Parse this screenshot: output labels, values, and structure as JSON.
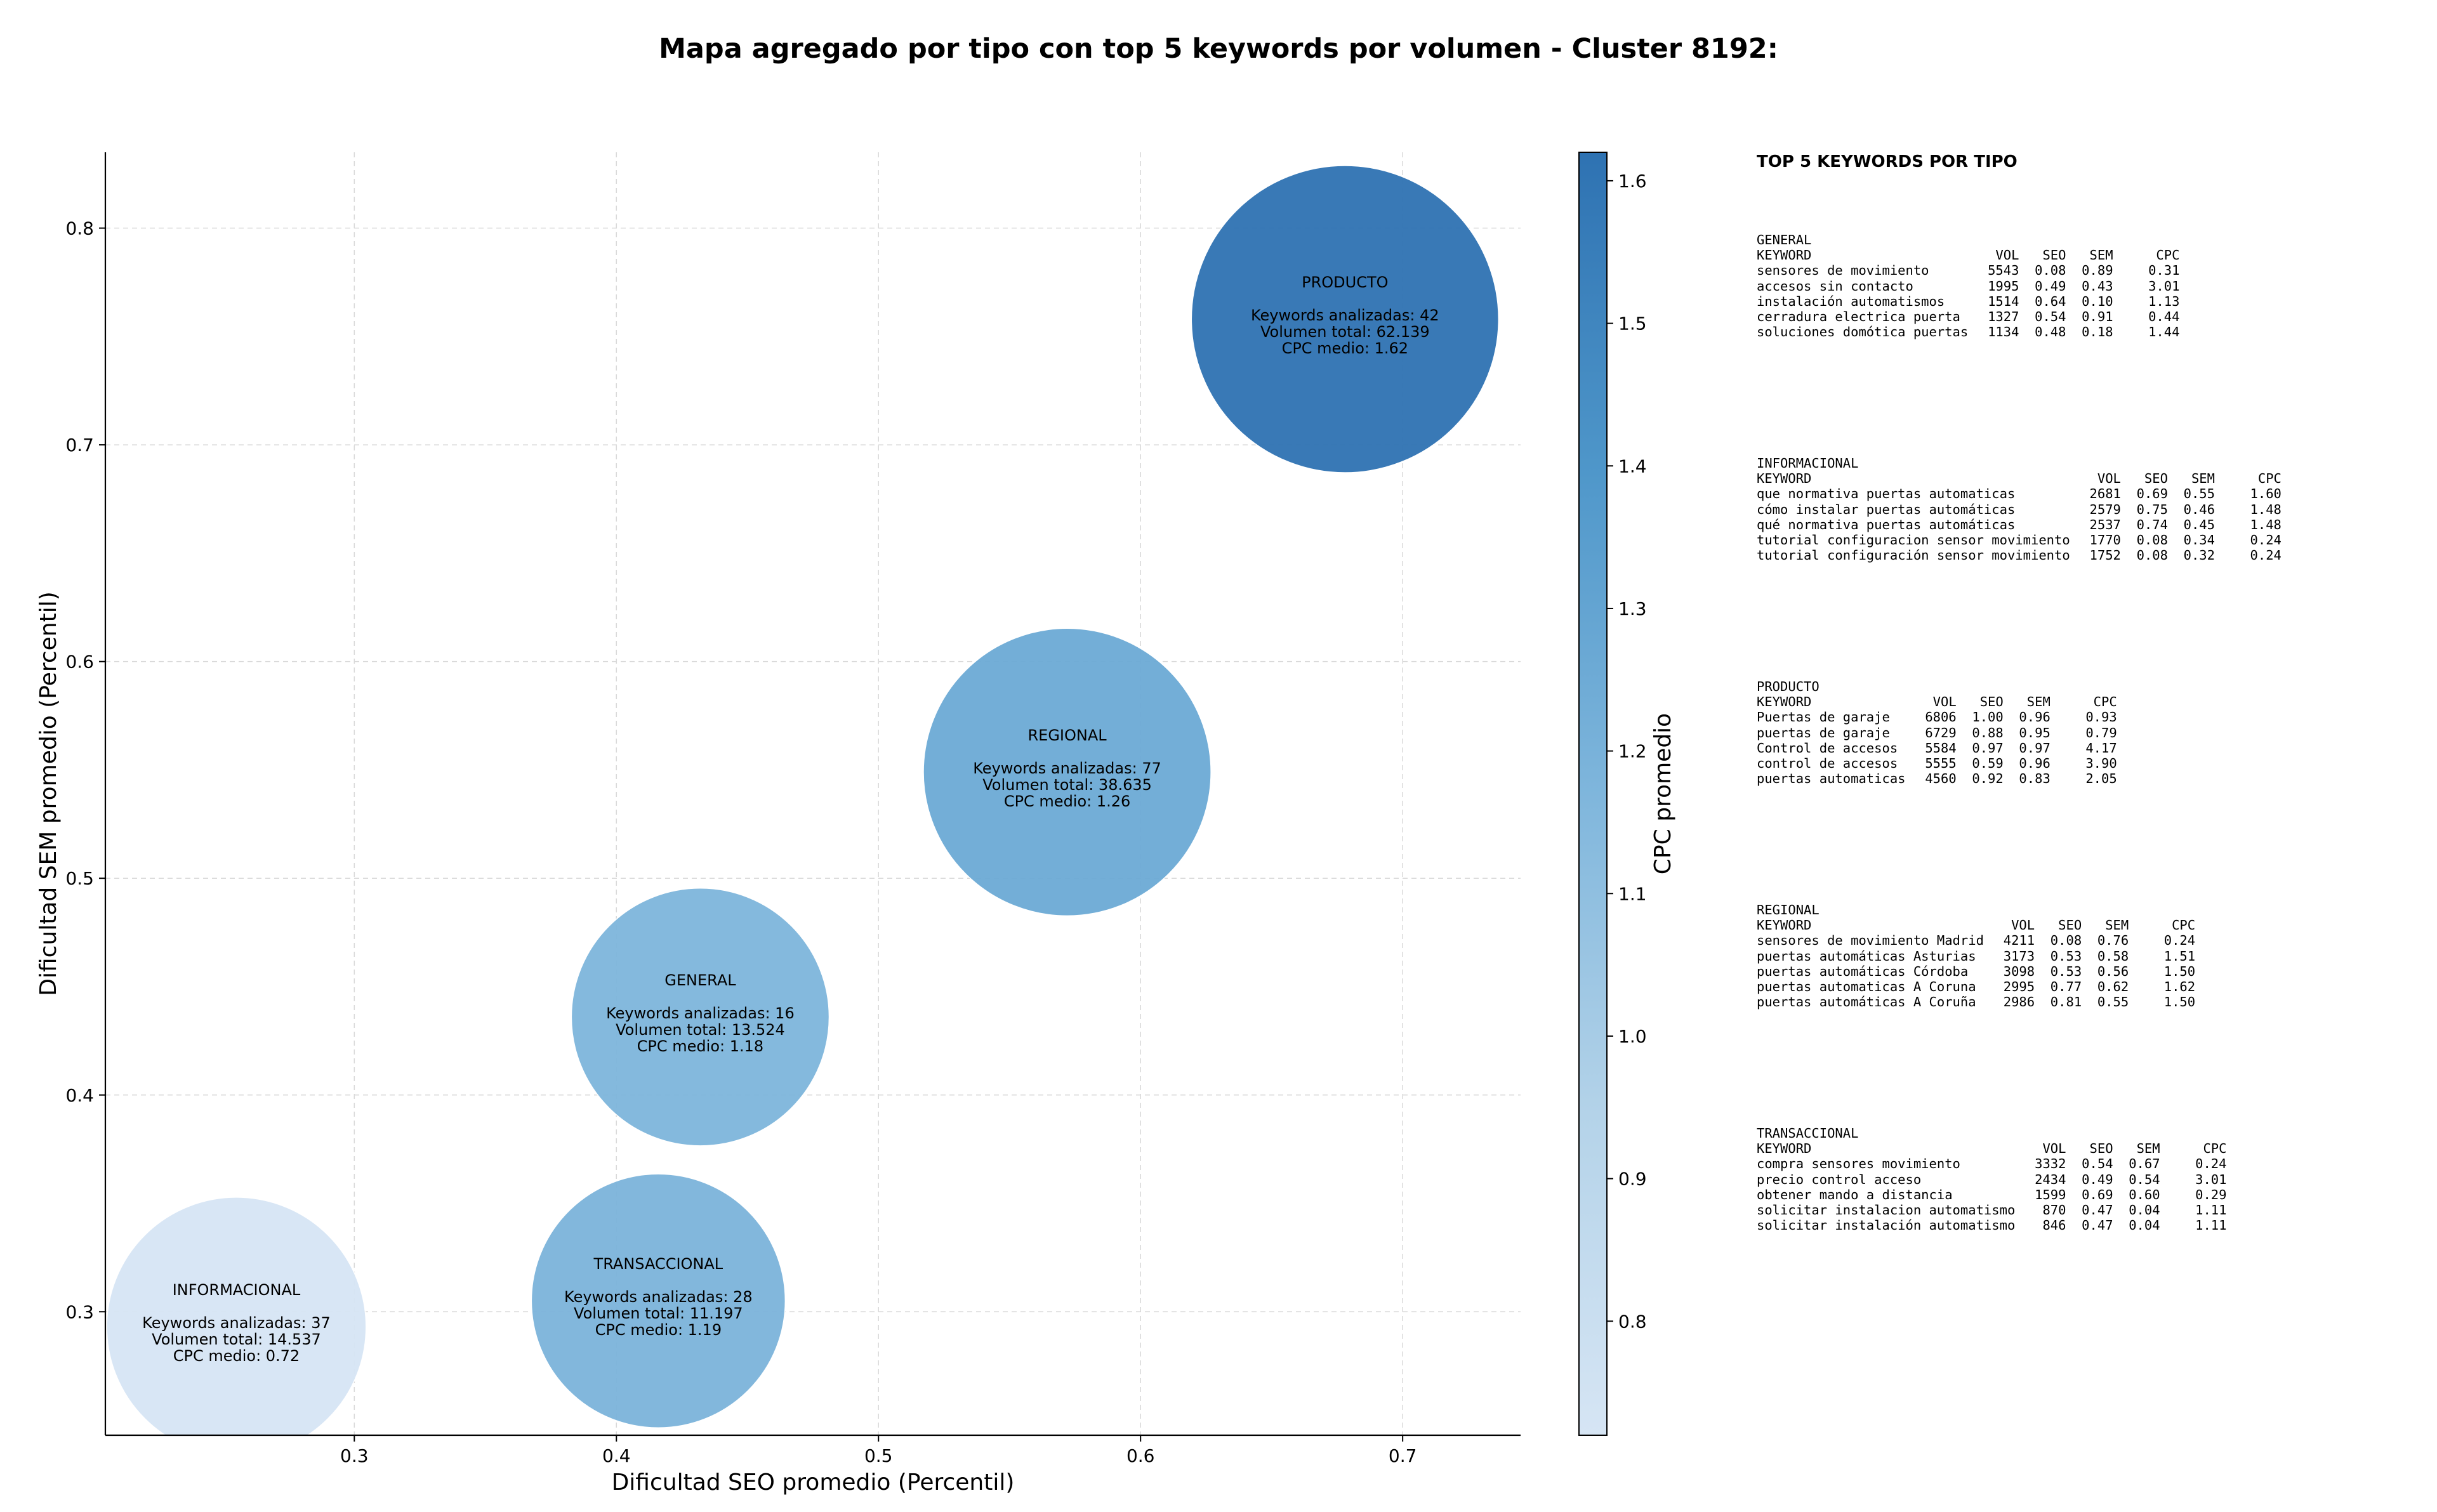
{
  "title": "Mapa agregado por tipo con top 5 keywords por volumen - Cluster 8192:",
  "chart_data": {
    "type": "scatter",
    "title": "Mapa agregado por tipo con top 5 keywords por volumen - Cluster 8192:",
    "xlabel": "Dificultad SEO promedio (Percentil)",
    "ylabel": "Dificultad SEM promedio (Percentil)",
    "xlim": [
      0.205,
      0.745
    ],
    "ylim": [
      0.243,
      0.835
    ],
    "xticks": [
      "0.3",
      "0.4",
      "0.5",
      "0.6",
      "0.7"
    ],
    "yticks": [
      "0.3",
      "0.4",
      "0.5",
      "0.6",
      "0.7",
      "0.8"
    ],
    "grid": true,
    "colorbar": {
      "label": "CPC promedio",
      "range": [
        0.72,
        1.62
      ],
      "ticks": [
        "0.8",
        "0.9",
        "1.0",
        "1.1",
        "1.2",
        "1.3",
        "1.4",
        "1.5",
        "1.6"
      ],
      "colormap": "Blues"
    },
    "bubbles": [
      {
        "name": "PRODUCTO",
        "x": 0.678,
        "y": 0.758,
        "keywords": 42,
        "volume": 62139,
        "lines": [
          "PRODUCTO",
          "",
          "Keywords analizadas: 42",
          "Volumen total: 62.139",
          "CPC medio: 1.62"
        ],
        "cpc": 1.62
      },
      {
        "name": "REGIONAL",
        "x": 0.572,
        "y": 0.549,
        "keywords": 77,
        "volume": 38635,
        "lines": [
          "REGIONAL",
          "",
          "Keywords analizadas: 77",
          "Volumen total: 38.635",
          "CPC medio: 1.26"
        ],
        "cpc": 1.26
      },
      {
        "name": "GENERAL",
        "x": 0.432,
        "y": 0.436,
        "keywords": 16,
        "volume": 13524,
        "lines": [
          "GENERAL",
          "",
          "Keywords analizadas: 16",
          "Volumen total: 13.524",
          "CPC medio: 1.18"
        ],
        "cpc": 1.18
      },
      {
        "name": "TRANSACCIONAL",
        "x": 0.416,
        "y": 0.305,
        "keywords": 28,
        "volume": 11197,
        "lines": [
          "TRANSACCIONAL",
          "",
          "Keywords analizadas: 28",
          "Volumen total: 11.197",
          "CPC medio: 1.19"
        ],
        "cpc": 1.19
      },
      {
        "name": "INFORMACIONAL",
        "x": 0.255,
        "y": 0.293,
        "keywords": 37,
        "volume": 14537,
        "lines": [
          "INFORMACIONAL",
          "",
          "Keywords analizadas: 37",
          "Volumen total: 14.537",
          "CPC medio: 0.72"
        ],
        "cpc": 0.72
      }
    ]
  },
  "panel": {
    "title": "TOP 5 KEYWORDS POR TIPO",
    "sections": [
      {
        "type": "GENERAL",
        "header": [
          "KEYWORD",
          "VOL",
          "SEO",
          "SEM",
          "CPC"
        ],
        "rows": [
          [
            "sensores de movimiento",
            "5543",
            "0.08",
            "0.89",
            "0.31"
          ],
          [
            "accesos sin contacto",
            "1995",
            "0.49",
            "0.43",
            "3.01"
          ],
          [
            "instalación automatismos",
            "1514",
            "0.64",
            "0.10",
            "1.13"
          ],
          [
            "cerradura electrica puerta",
            "1327",
            "0.54",
            "0.91",
            "0.44"
          ],
          [
            "soluciones domótica puertas",
            "1134",
            "0.48",
            "0.18",
            "1.44"
          ]
        ]
      },
      {
        "type": "INFORMACIONAL",
        "header": [
          "KEYWORD",
          "VOL",
          "SEO",
          "SEM",
          "CPC"
        ],
        "rows": [
          [
            "que normativa puertas automaticas",
            "2681",
            "0.69",
            "0.55",
            "1.60"
          ],
          [
            "cómo instalar puertas automáticas",
            "2579",
            "0.75",
            "0.46",
            "1.48"
          ],
          [
            "qué normativa puertas automáticas",
            "2537",
            "0.74",
            "0.45",
            "1.48"
          ],
          [
            "tutorial configuracion sensor movimiento",
            "1770",
            "0.08",
            "0.34",
            "0.24"
          ],
          [
            "tutorial configuración sensor movimiento",
            "1752",
            "0.08",
            "0.32",
            "0.24"
          ]
        ]
      },
      {
        "type": "PRODUCTO",
        "header": [
          "KEYWORD",
          "VOL",
          "SEO",
          "SEM",
          "CPC"
        ],
        "rows": [
          [
            "Puertas de garaje",
            "6806",
            "1.00",
            "0.96",
            "0.93"
          ],
          [
            "puertas de garaje",
            "6729",
            "0.88",
            "0.95",
            "0.79"
          ],
          [
            "Control de accesos",
            "5584",
            "0.97",
            "0.97",
            "4.17"
          ],
          [
            "control de accesos",
            "5555",
            "0.59",
            "0.96",
            "3.90"
          ],
          [
            "puertas automaticas",
            "4560",
            "0.92",
            "0.83",
            "2.05"
          ]
        ]
      },
      {
        "type": "REGIONAL",
        "header": [
          "KEYWORD",
          "VOL",
          "SEO",
          "SEM",
          "CPC"
        ],
        "rows": [
          [
            "sensores de movimiento Madrid",
            "4211",
            "0.08",
            "0.76",
            "0.24"
          ],
          [
            "puertas automáticas Asturias",
            "3173",
            "0.53",
            "0.58",
            "1.51"
          ],
          [
            "puertas automáticas Córdoba",
            "3098",
            "0.53",
            "0.56",
            "1.50"
          ],
          [
            "puertas automaticas A Coruna",
            "2995",
            "0.77",
            "0.62",
            "1.62"
          ],
          [
            "puertas automáticas A Coruña",
            "2986",
            "0.81",
            "0.55",
            "1.50"
          ]
        ]
      },
      {
        "type": "TRANSACCIONAL",
        "header": [
          "KEYWORD",
          "VOL",
          "SEO",
          "SEM",
          "CPC"
        ],
        "rows": [
          [
            "compra sensores movimiento",
            "3332",
            "0.54",
            "0.67",
            "0.24"
          ],
          [
            "precio control acceso",
            "2434",
            "0.49",
            "0.54",
            "3.01"
          ],
          [
            "obtener mando a distancia",
            "1599",
            "0.69",
            "0.60",
            "0.29"
          ],
          [
            "solicitar instalacion automatismo",
            "870",
            "0.47",
            "0.04",
            "1.11"
          ],
          [
            "solicitar instalación automatismo",
            "846",
            "0.47",
            "0.04",
            "1.11"
          ]
        ]
      }
    ]
  }
}
